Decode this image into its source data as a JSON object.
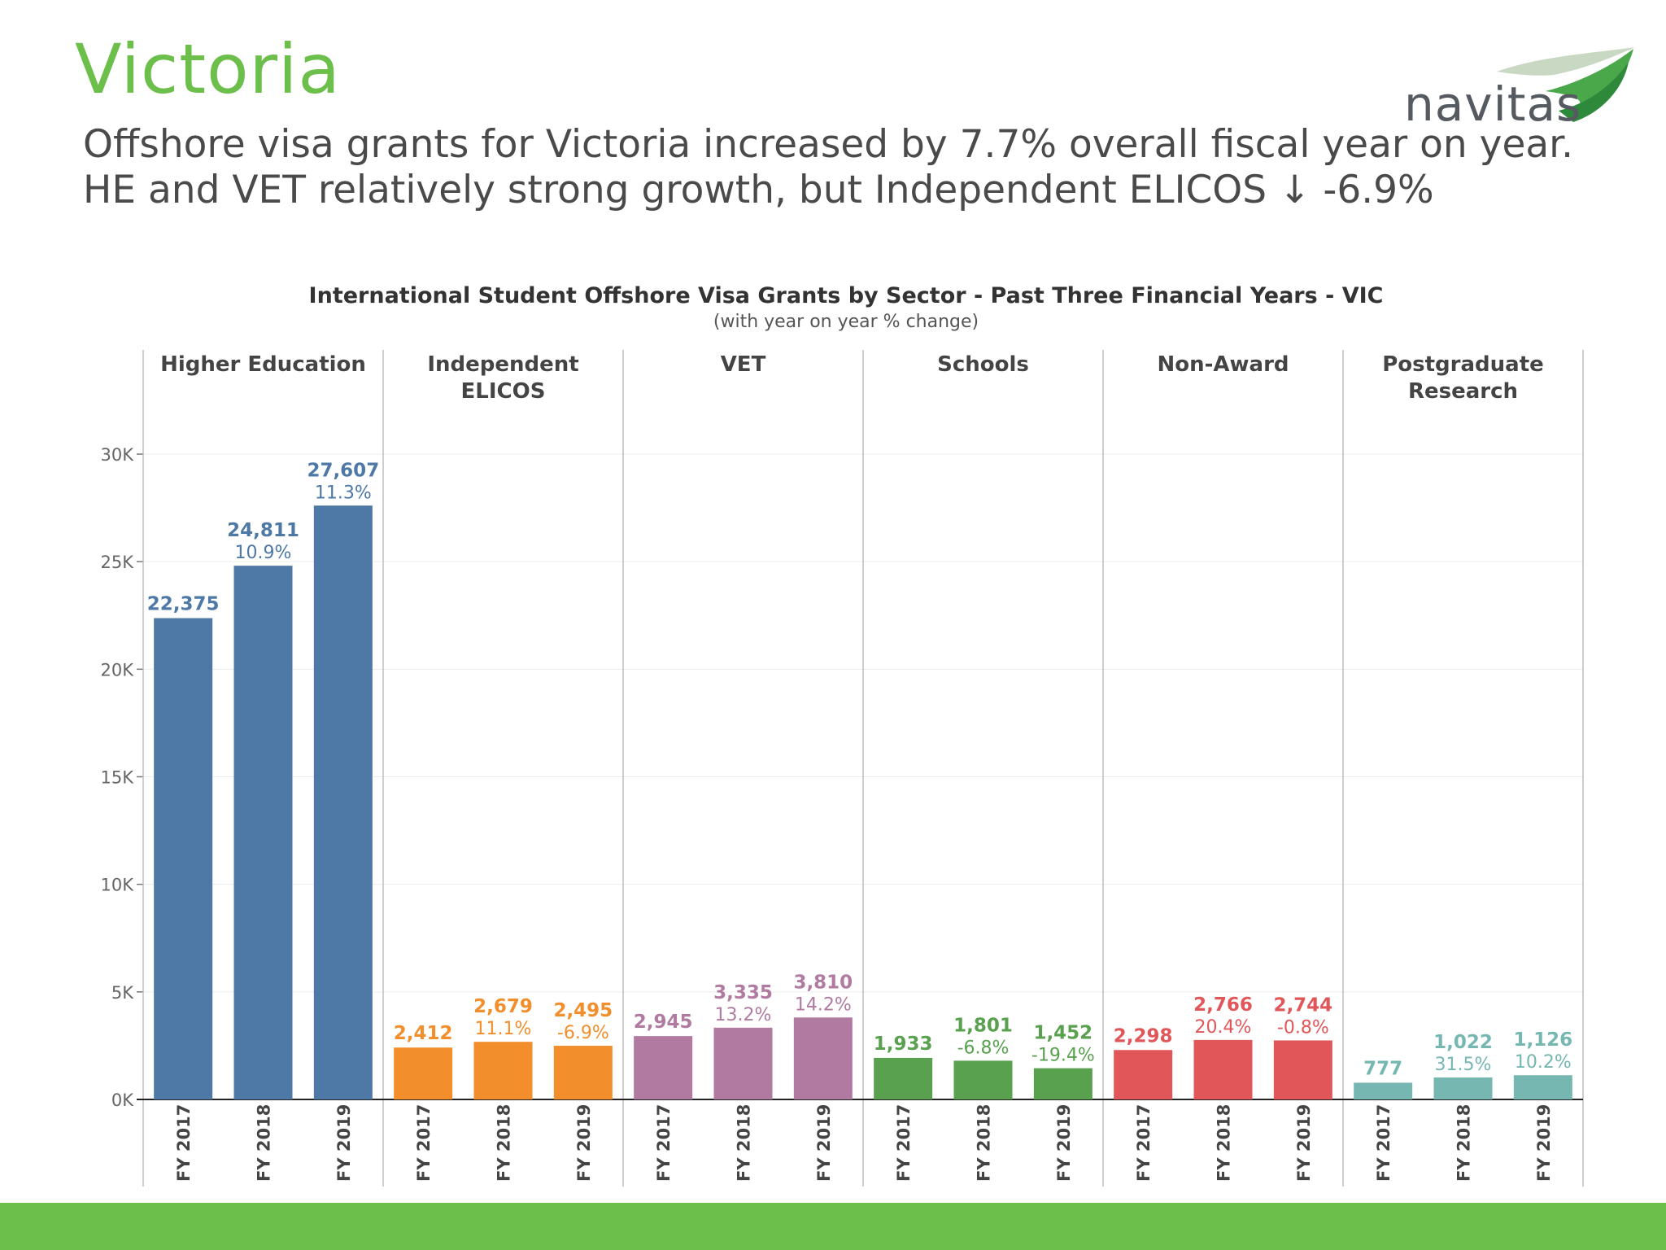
{
  "slide": {
    "title": "Victoria",
    "subtitle_line1": "Offshore visa grants for Victoria increased by 7.7% overall fiscal year on year.",
    "subtitle_line2": "HE and VET relatively strong growth, but Independent ELICOS ↓ -6.9%",
    "logo_text": "navitas",
    "accent_color": "#6cbf4a"
  },
  "chart_data": {
    "type": "bar",
    "title": "International Student Offshore Visa Grants by Sector - Past Three Financial Years - VIC",
    "subtitle": "(with year on year % change)",
    "categories": [
      "FY 2017",
      "FY 2018",
      "FY 2019"
    ],
    "ylim": [
      0,
      30000
    ],
    "yticks": [
      {
        "value": 0,
        "label": "0K"
      },
      {
        "value": 5000,
        "label": "5K"
      },
      {
        "value": 10000,
        "label": "10K"
      },
      {
        "value": 15000,
        "label": "15K"
      },
      {
        "value": 20000,
        "label": "20K"
      },
      {
        "value": 25000,
        "label": "25K"
      },
      {
        "value": 30000,
        "label": "30K"
      }
    ],
    "grid": true,
    "panels": [
      {
        "name": "Higher Education",
        "name_lines": [
          "Higher Education"
        ],
        "color": "#4e78a6",
        "values": [
          22375,
          24811,
          27607
        ],
        "value_labels": [
          "22,375",
          "24,811",
          "27,607"
        ],
        "pct_labels": [
          "",
          "10.9%",
          "11.3%"
        ]
      },
      {
        "name": "Independent ELICOS",
        "name_lines": [
          "Independent",
          "ELICOS"
        ],
        "color": "#f28e2b",
        "values": [
          2412,
          2679,
          2495
        ],
        "value_labels": [
          "2,412",
          "2,679",
          "2,495"
        ],
        "pct_labels": [
          "",
          "11.1%",
          "-6.9%"
        ]
      },
      {
        "name": "VET",
        "name_lines": [
          "VET"
        ],
        "color": "#b07aa1",
        "values": [
          2945,
          3335,
          3810
        ],
        "value_labels": [
          "2,945",
          "3,335",
          "3,810"
        ],
        "pct_labels": [
          "",
          "13.2%",
          "14.2%"
        ]
      },
      {
        "name": "Schools",
        "name_lines": [
          "Schools"
        ],
        "color": "#59a14f",
        "values": [
          1933,
          1801,
          1452
        ],
        "value_labels": [
          "1,933",
          "1,801",
          "1,452"
        ],
        "pct_labels": [
          "",
          "-6.8%",
          "-19.4%"
        ]
      },
      {
        "name": "Non-Award",
        "name_lines": [
          "Non-Award"
        ],
        "color": "#e15759",
        "values": [
          2298,
          2766,
          2744
        ],
        "value_labels": [
          "2,298",
          "2,766",
          "2,744"
        ],
        "pct_labels": [
          "",
          "20.4%",
          "-0.8%"
        ]
      },
      {
        "name": "Postgraduate Research",
        "name_lines": [
          "Postgraduate",
          "Research"
        ],
        "color": "#76b7b2",
        "values": [
          777,
          1022,
          1126
        ],
        "value_labels": [
          "777",
          "1,022",
          "1,126"
        ],
        "pct_labels": [
          "",
          "31.5%",
          "10.2%"
        ]
      }
    ]
  }
}
